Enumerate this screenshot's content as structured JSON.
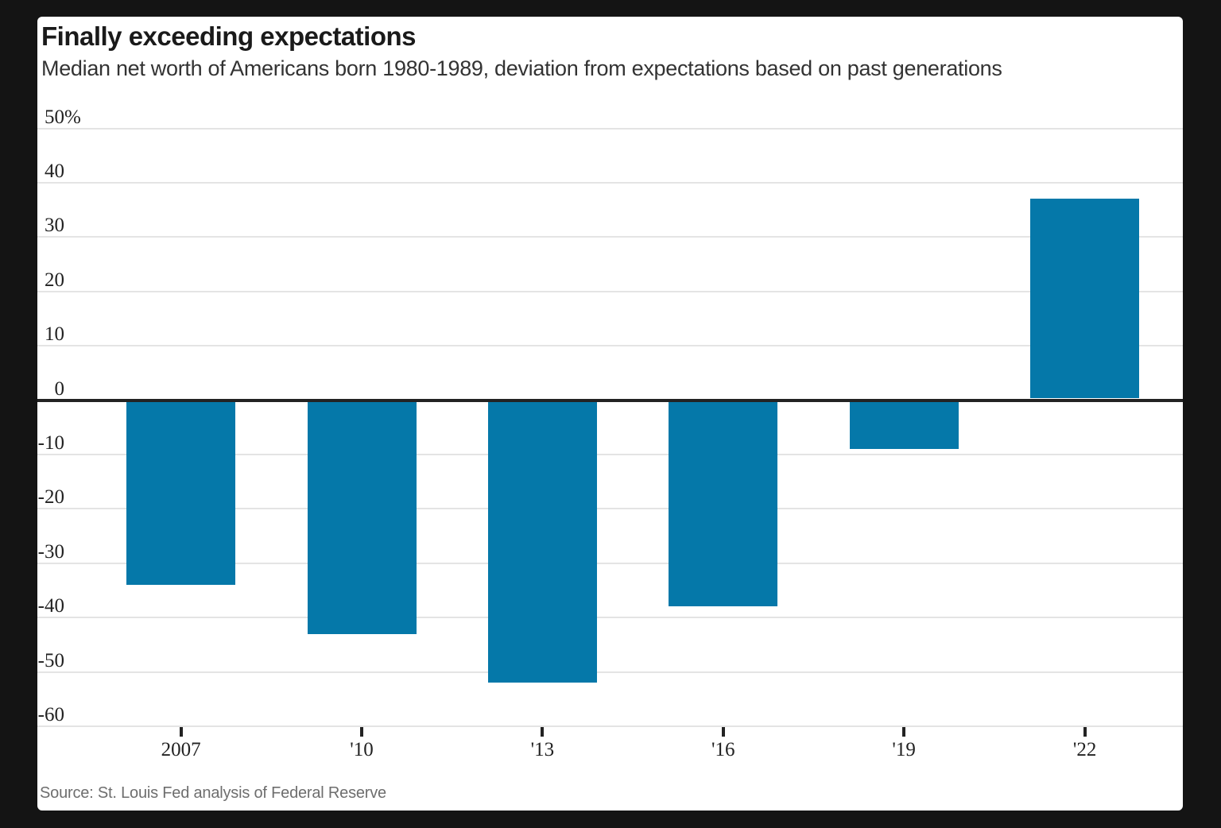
{
  "background_color": "#141414",
  "card_color": "#ffffff",
  "chart_data": {
    "type": "bar",
    "title": "Finally exceeding expectations",
    "subtitle": "Median net worth of Americans born 1980-1989, deviation from expectations based on past generations",
    "source": "Source: St. Louis Fed analysis of Federal Reserve",
    "categories": [
      "2007",
      "'10",
      "'13",
      "'16",
      "'19",
      "'22"
    ],
    "values": [
      -34,
      -43,
      -52,
      -38,
      -9,
      37
    ],
    "unit": "%",
    "bar_color": "#0578a9",
    "ylim": [
      -60,
      50
    ],
    "y_tick_labels": [
      "50%",
      "40",
      "30",
      "20",
      "10",
      "0",
      "-10",
      "-20",
      "-30",
      "-40",
      "-50",
      "-60"
    ],
    "y_tick_values": [
      50,
      40,
      30,
      20,
      10,
      0,
      -10,
      -20,
      -30,
      -40,
      -50,
      -60
    ],
    "grid": "horizontal",
    "legend": "none",
    "zero_line_color": "#232323",
    "gridline_color": "#e4e4e4"
  }
}
